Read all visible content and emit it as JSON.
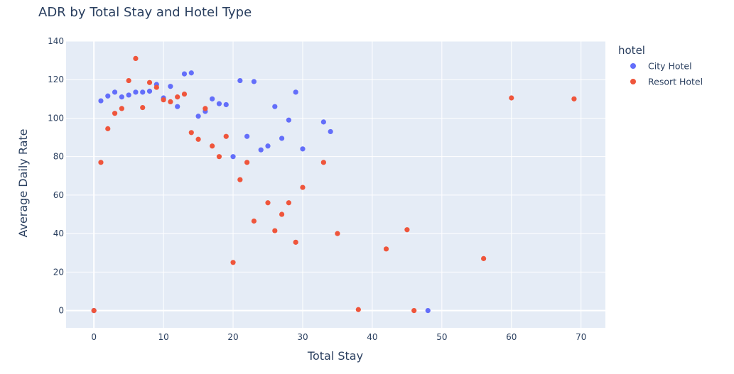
{
  "chart_data": {
    "type": "scatter",
    "title": "ADR by Total Stay and Hotel Type",
    "xlabel": "Total Stay",
    "ylabel": "Average Daily Rate",
    "xlim": [
      -4,
      73.5
    ],
    "ylim": [
      -9,
      140
    ],
    "x_ticks": [
      0,
      10,
      20,
      30,
      40,
      50,
      60,
      70
    ],
    "y_ticks": [
      0,
      20,
      40,
      60,
      80,
      100,
      120,
      140
    ],
    "grid": true,
    "legend": {
      "title": "hotel",
      "position": "top-right"
    },
    "series": [
      {
        "name": "City Hotel",
        "color": "#636efa",
        "points": [
          [
            0,
            0
          ],
          [
            1,
            109
          ],
          [
            2,
            111.5
          ],
          [
            3,
            113.5
          ],
          [
            4,
            111
          ],
          [
            5,
            112
          ],
          [
            6,
            113.5
          ],
          [
            7,
            113.5
          ],
          [
            8,
            114
          ],
          [
            9,
            117.5
          ],
          [
            10,
            110.5
          ],
          [
            11,
            116.5
          ],
          [
            12,
            106
          ],
          [
            13,
            123
          ],
          [
            14,
            123.5
          ],
          [
            15,
            101
          ],
          [
            16,
            103.5
          ],
          [
            17,
            110
          ],
          [
            18,
            107.5
          ],
          [
            19,
            107
          ],
          [
            20,
            80
          ],
          [
            21,
            119.5
          ],
          [
            22,
            90.5
          ],
          [
            23,
            119
          ],
          [
            24,
            83.5
          ],
          [
            25,
            85.5
          ],
          [
            26,
            106
          ],
          [
            27,
            89.5
          ],
          [
            28,
            99
          ],
          [
            29,
            113.5
          ],
          [
            30,
            84
          ],
          [
            33,
            98
          ],
          [
            34,
            93
          ],
          [
            48,
            0
          ]
        ]
      },
      {
        "name": "Resort Hotel",
        "color": "#ef553b",
        "points": [
          [
            0,
            0
          ],
          [
            1,
            77
          ],
          [
            2,
            94.5
          ],
          [
            3,
            102.5
          ],
          [
            4,
            105
          ],
          [
            5,
            119.5
          ],
          [
            6,
            131
          ],
          [
            7,
            105.5
          ],
          [
            8,
            118.5
          ],
          [
            9,
            116
          ],
          [
            10,
            109.5
          ],
          [
            11,
            108.5
          ],
          [
            12,
            111
          ],
          [
            13,
            112.5
          ],
          [
            14,
            92.5
          ],
          [
            15,
            89
          ],
          [
            16,
            105
          ],
          [
            17,
            85.5
          ],
          [
            18,
            80
          ],
          [
            19,
            90.5
          ],
          [
            20,
            25
          ],
          [
            21,
            68
          ],
          [
            22,
            77
          ],
          [
            23,
            46.5
          ],
          [
            25,
            56
          ],
          [
            26,
            41.5
          ],
          [
            27,
            50
          ],
          [
            28,
            56
          ],
          [
            29,
            35.5
          ],
          [
            30,
            64
          ],
          [
            33,
            77
          ],
          [
            35,
            40
          ],
          [
            38,
            0.5
          ],
          [
            42,
            32
          ],
          [
            45,
            42
          ],
          [
            46,
            0
          ],
          [
            56,
            27
          ],
          [
            60,
            110.5
          ],
          [
            69,
            110
          ]
        ]
      }
    ]
  }
}
